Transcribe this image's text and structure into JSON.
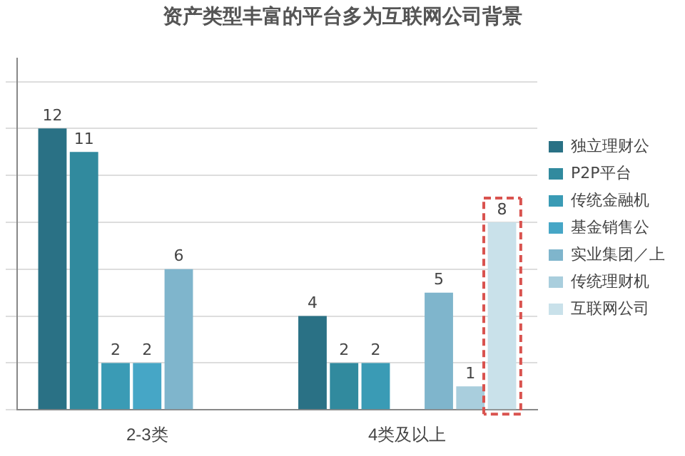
{
  "chart_data": {
    "type": "bar",
    "title": "资产类型丰富的平台多为互联网公司背景",
    "categories": [
      "2-3类",
      "4类及以上"
    ],
    "series": [
      {
        "name": "独立理财公",
        "color": "#2a7185",
        "values": [
          12,
          4
        ]
      },
      {
        "name": "P2P平台",
        "color": "#318a9e",
        "values": [
          11,
          2
        ]
      },
      {
        "name": "传统金融机",
        "color": "#3a9bb5",
        "values": [
          2,
          2
        ]
      },
      {
        "name": "基金销售公",
        "color": "#46a6c6",
        "values": [
          2,
          null
        ]
      },
      {
        "name": "实业集团／上",
        "color": "#7fb5cc",
        "values": [
          6,
          5
        ]
      },
      {
        "name": "传统理财机",
        "color": "#a9cedd",
        "values": [
          null,
          1
        ]
      },
      {
        "name": "互联网公司",
        "color": "#c9e1ea",
        "values": [
          null,
          8
        ]
      }
    ],
    "ylim": [
      0,
      15
    ],
    "yticks": [
      {
        "value": 0,
        "label": null
      },
      {
        "value": 2,
        "label": null
      },
      {
        "value": 4,
        "label": null
      },
      {
        "value": 6,
        "label": null
      },
      {
        "value": 8,
        "label": null
      },
      {
        "value": 10,
        "label": null
      },
      {
        "value": 12,
        "label": null
      },
      {
        "value": 14,
        "label": null
      }
    ],
    "tick_labels": "x",
    "grid": "y",
    "legend": "right",
    "data_labels": true
  }
}
